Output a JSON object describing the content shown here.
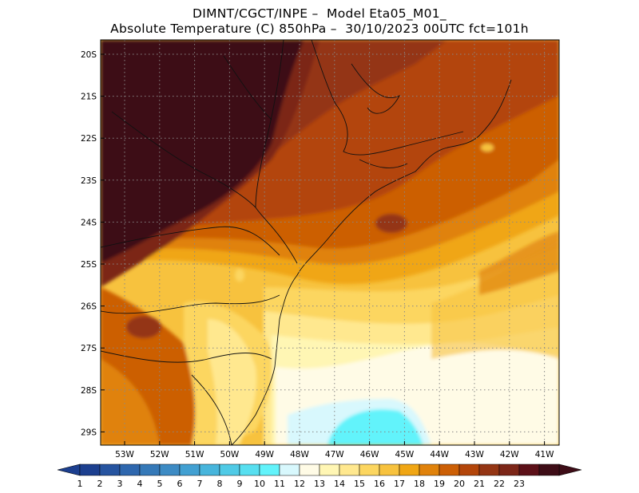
{
  "title_line1": "DIMNT/CGCT/INPE –  Model Eta05_M01_",
  "title_line2": "Absolute Temperature (C) 850hPa –  30/10/2023 00UTC fct=101h",
  "lat_labels": [
    "20S",
    "21S",
    "22S",
    "23S",
    "24S",
    "25S",
    "26S",
    "27S",
    "28S",
    "29S"
  ],
  "lon_labels": [
    "53W",
    "52W",
    "51W",
    "50W",
    "49W",
    "48W",
    "47W",
    "46W",
    "45W",
    "44W",
    "43W",
    "42W",
    "41W"
  ],
  "colorbar": {
    "labels": [
      "1",
      "2",
      "3",
      "4",
      "5",
      "6",
      "7",
      "8",
      "9",
      "10",
      "11",
      "12",
      "13",
      "14",
      "15",
      "16",
      "17",
      "18",
      "19",
      "20",
      "21",
      "22",
      "23"
    ],
    "colors": [
      "#1c3f8f",
      "#2654a0",
      "#2e67ae",
      "#3579b8",
      "#3d8bc4",
      "#42a0d2",
      "#47b5dc",
      "#4fcae6",
      "#57dff0",
      "#62f3fb",
      "#d8f8fd",
      "#fffbe6",
      "#fff6b4",
      "#ffe88f",
      "#fcd660",
      "#f7c23e",
      "#f0a614",
      "#e0820b",
      "#cc5f05",
      "#b3450a",
      "#943514",
      "#7c2618",
      "#5c1018",
      "#3e0d17"
    ],
    "low_cap_color": "#1c3f8f",
    "high_cap_color": "#3e0d17"
  }
}
